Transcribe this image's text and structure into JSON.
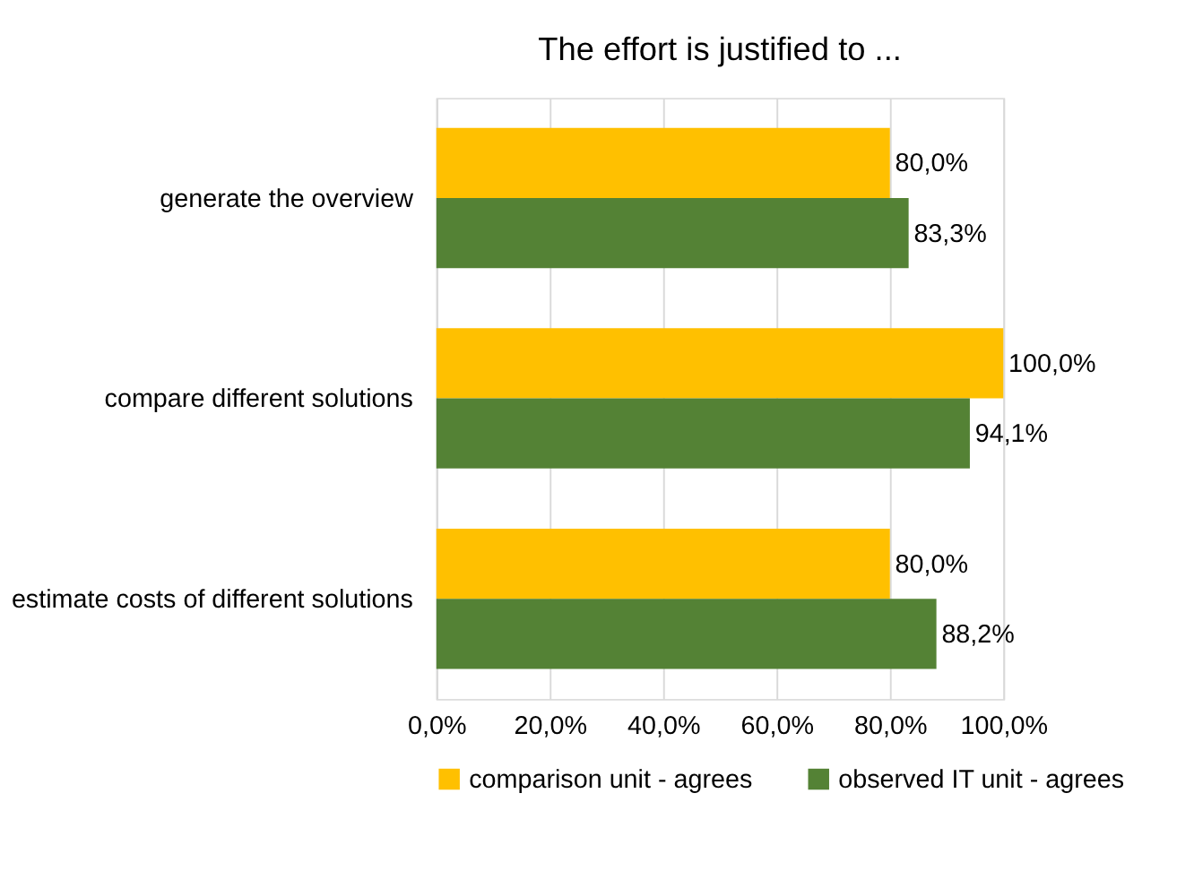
{
  "chart_data": {
    "type": "bar",
    "orientation": "horizontal",
    "title": "The effort is justified to ...",
    "categories": [
      "generate the overview",
      "compare different solutions",
      "estimate costs of different solutions"
    ],
    "series": [
      {
        "name": "comparison unit - agrees",
        "color": "#ffc000",
        "values": [
          80.0,
          100.0,
          80.0
        ],
        "value_labels": [
          "80,0%",
          "100,0%",
          "80,0%"
        ]
      },
      {
        "name": "observed IT unit - agrees",
        "color": "#548235",
        "values": [
          83.3,
          94.1,
          88.2
        ],
        "value_labels": [
          "83,3%",
          "94,1%",
          "88,2%"
        ]
      }
    ],
    "xlim": [
      0,
      100
    ],
    "xticks": [
      {
        "value": 0,
        "label": "0,0%"
      },
      {
        "value": 20,
        "label": "20,0%"
      },
      {
        "value": 40,
        "label": "40,0%"
      },
      {
        "value": 60,
        "label": "60,0%"
      },
      {
        "value": 80,
        "label": "80,0%"
      },
      {
        "value": 100,
        "label": "100,0%"
      }
    ],
    "grid": "x",
    "legend": "bottom"
  }
}
